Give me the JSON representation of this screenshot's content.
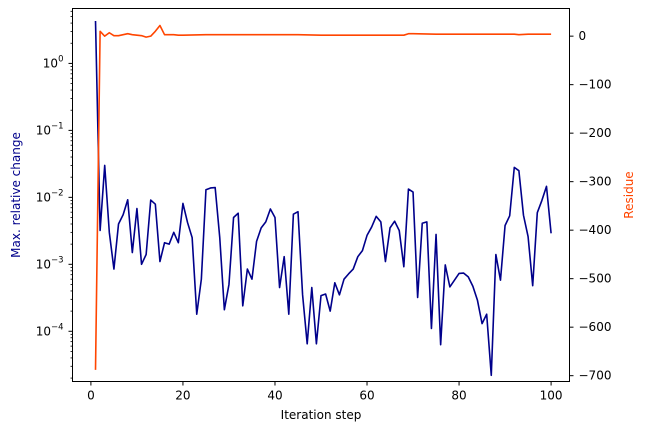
{
  "chart_data": {
    "type": "line",
    "xlabel": "Iteration step",
    "ylabel_left": "Max. relative change",
    "ylabel_right": "Residue",
    "xlim": [
      -4,
      104
    ],
    "x_ticks": [
      0,
      20,
      40,
      60,
      80,
      100
    ],
    "y_left_scale": "log",
    "y_left_lim_log10": [
      -4.75,
      0.82
    ],
    "y_left_ticks": [
      {
        "label": "10",
        "exp": "0",
        "value": 1
      },
      {
        "label": "10",
        "exp": "−1",
        "value": 0.1
      },
      {
        "label": "10",
        "exp": "−2",
        "value": 0.01
      },
      {
        "label": "10",
        "exp": "−3",
        "value": 0.001
      },
      {
        "label": "10",
        "exp": "−4",
        "value": 0.0001
      }
    ],
    "y_right_lim": [
      -712,
      57
    ],
    "y_right_ticks": [
      0,
      -100,
      -200,
      -300,
      -400,
      -500,
      -600,
      -700
    ],
    "y_right_tick_labels": [
      "0",
      "−100",
      "−200",
      "−300",
      "−400",
      "−500",
      "−600",
      "−700"
    ],
    "colors": {
      "left": "#00008b",
      "right": "#ff4500"
    },
    "grid": false,
    "series": [
      {
        "axis": "left",
        "x": [
          1,
          2,
          3,
          4,
          5,
          6,
          7,
          8,
          9,
          10,
          11,
          12,
          13,
          14,
          15,
          16,
          17,
          18,
          19,
          20,
          21,
          22,
          23,
          24,
          25,
          26,
          27,
          28,
          29,
          30,
          31,
          32,
          33,
          34,
          35,
          36,
          37,
          38,
          39,
          40,
          41,
          42,
          43,
          44,
          45,
          46,
          47,
          48,
          49,
          50,
          51,
          52,
          53,
          54,
          55,
          56,
          57,
          58,
          59,
          60,
          61,
          62,
          63,
          64,
          65,
          66,
          67,
          68,
          69,
          70,
          71,
          72,
          73,
          74,
          75,
          76,
          77,
          78,
          79,
          80,
          81,
          82,
          83,
          84,
          85,
          86,
          87,
          88,
          89,
          90,
          91,
          92,
          93,
          94,
          95,
          96,
          97,
          98,
          99,
          100
        ],
        "values": [
          4.3,
          0.0032,
          0.03,
          0.003,
          0.00085,
          0.004,
          0.0055,
          0.0092,
          0.0015,
          0.0068,
          0.001,
          0.0014,
          0.0091,
          0.0079,
          0.0011,
          0.0021,
          0.002,
          0.003,
          0.0021,
          0.0081,
          0.0042,
          0.0025,
          0.00018,
          0.0006,
          0.013,
          0.0138,
          0.014,
          0.0025,
          0.00021,
          0.0005,
          0.005,
          0.0058,
          0.00024,
          0.00085,
          0.0006,
          0.0022,
          0.0035,
          0.0043,
          0.0067,
          0.005,
          0.00045,
          0.0013,
          0.00018,
          0.0056,
          0.0061,
          0.00035,
          6.5e-05,
          0.00045,
          6.5e-05,
          0.00034,
          0.00036,
          0.0002,
          0.00053,
          0.00035,
          0.0006,
          0.00072,
          0.00085,
          0.0013,
          0.0016,
          0.0027,
          0.0036,
          0.0052,
          0.0043,
          0.0011,
          0.0035,
          0.0044,
          0.0032,
          0.00092,
          0.0133,
          0.012,
          0.00032,
          0.0041,
          0.0043,
          0.00011,
          0.0028,
          6.3e-05,
          0.00098,
          0.00046,
          0.00058,
          0.00073,
          0.00074,
          0.00065,
          0.00047,
          0.00029,
          0.00013,
          0.00018,
          2.2e-05,
          0.0014,
          0.00058,
          0.0038,
          0.0053,
          0.028,
          0.025,
          0.0054,
          0.0026,
          0.00048,
          0.0059,
          0.009,
          0.0146,
          0.0029
        ]
      },
      {
        "axis": "right",
        "x": [
          1,
          2,
          3,
          4,
          5,
          6,
          7,
          8,
          9,
          10,
          11,
          12,
          13,
          14,
          15,
          16,
          17,
          18,
          19,
          20,
          25,
          30,
          35,
          40,
          45,
          50,
          55,
          60,
          65,
          67,
          68,
          69,
          70,
          75,
          80,
          85,
          90,
          92,
          93,
          95,
          100
        ],
        "values": [
          -688,
          10,
          0,
          7,
          1,
          1,
          3,
          5,
          3,
          2,
          1,
          -2,
          0,
          10,
          22,
          3,
          3,
          3,
          2,
          2,
          3,
          3,
          3,
          3,
          3,
          2,
          2,
          2,
          2,
          2,
          2,
          5,
          5,
          4,
          4,
          4,
          4,
          4,
          3,
          4,
          4
        ]
      }
    ]
  }
}
